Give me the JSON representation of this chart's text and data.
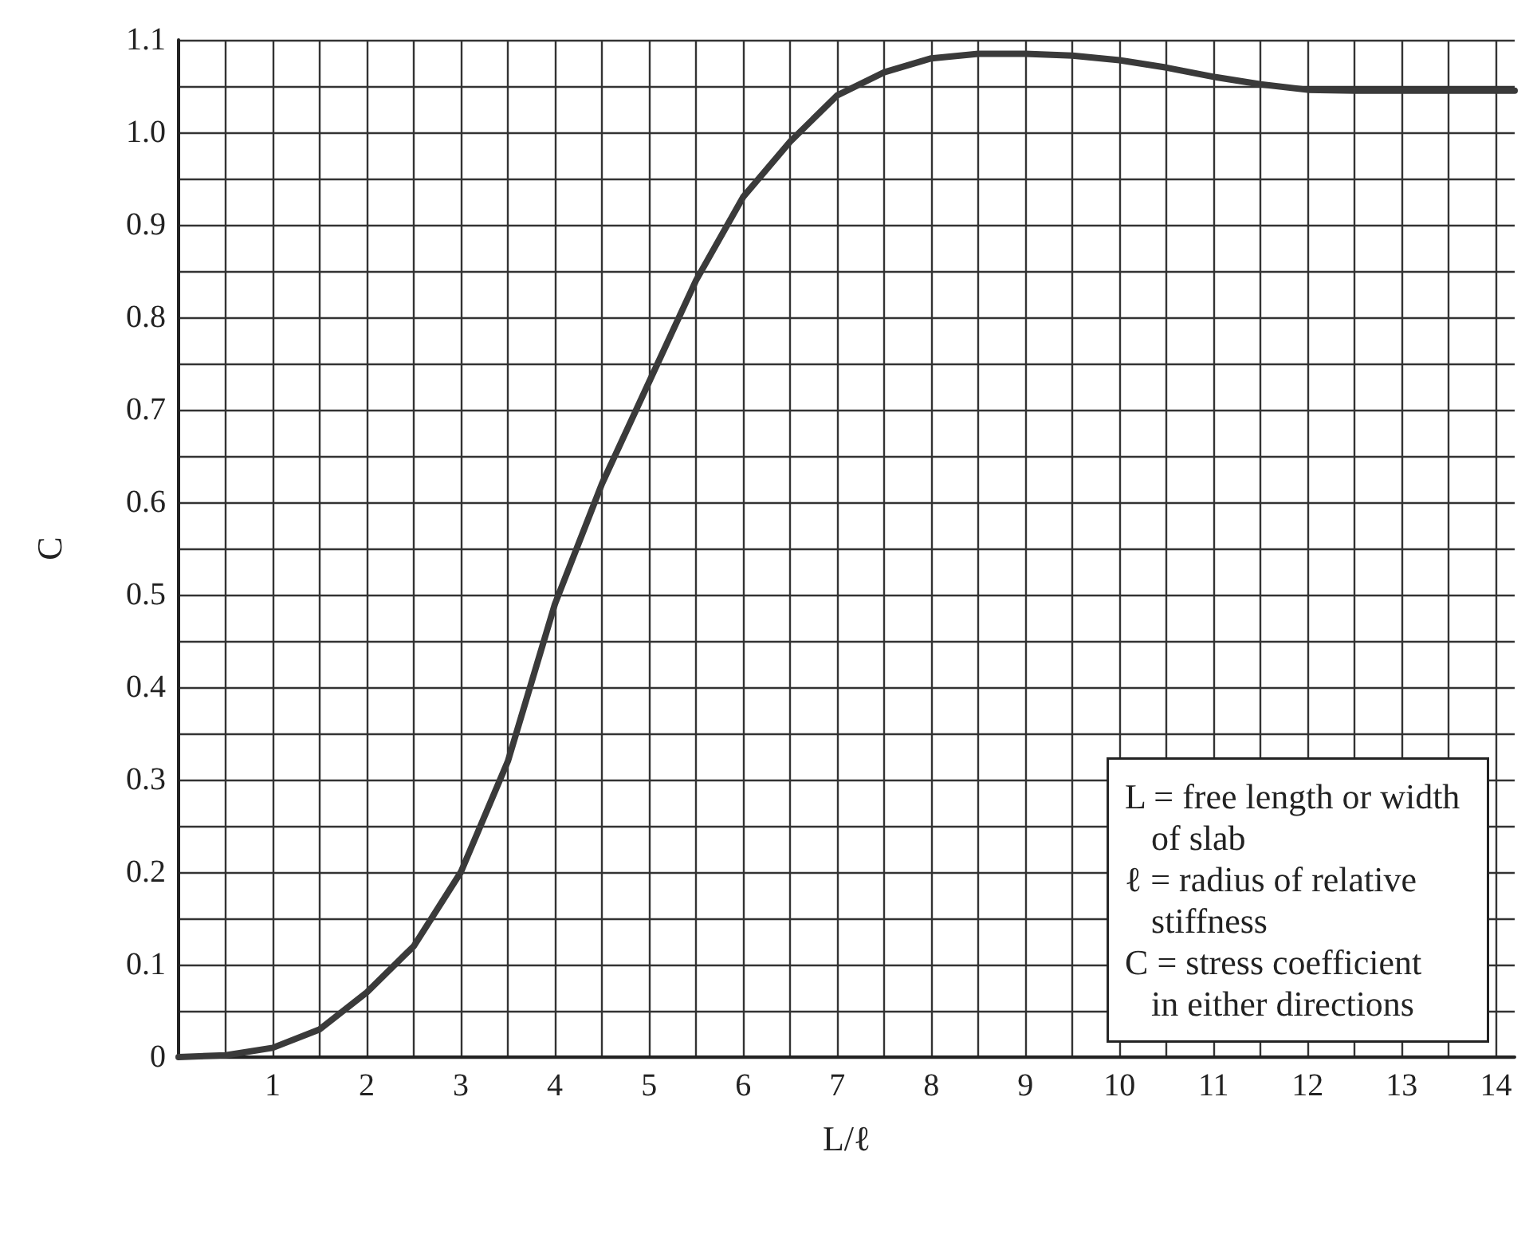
{
  "chart_data": {
    "type": "line",
    "xlabel": "L/ℓ",
    "ylabel": "C",
    "x": [
      0,
      0.5,
      1,
      1.5,
      2,
      2.5,
      3,
      3.5,
      4,
      4.5,
      5,
      5.5,
      6,
      6.5,
      7,
      7.5,
      8,
      8.5,
      9,
      9.5,
      10,
      10.5,
      11,
      11.5,
      12,
      12.5,
      13,
      13.5,
      14,
      14.2
    ],
    "series": [
      {
        "color": "#3a3a3a",
        "values": [
          0,
          0.002,
          0.01,
          0.03,
          0.07,
          0.12,
          0.2,
          0.32,
          0.49,
          0.62,
          0.73,
          0.84,
          0.93,
          0.99,
          1.04,
          1.065,
          1.08,
          1.085,
          1.085,
          1.083,
          1.078,
          1.07,
          1.06,
          1.052,
          1.046,
          1.045,
          1.045,
          1.045,
          1.045,
          1.045
        ]
      }
    ],
    "xlim": [
      0,
      14.2
    ],
    "xticks": [
      {
        "value": 0.5,
        "label": null
      },
      1,
      {
        "value": 1.5,
        "label": null
      },
      2,
      {
        "value": 2.5,
        "label": null
      },
      3,
      {
        "value": 3.5,
        "label": null
      },
      4,
      {
        "value": 4.5,
        "label": null
      },
      5,
      {
        "value": 5.5,
        "label": null
      },
      6,
      {
        "value": 6.5,
        "label": null
      },
      7,
      {
        "value": 7.5,
        "label": null
      },
      8,
      {
        "value": 8.5,
        "label": null
      },
      9,
      {
        "value": 9.5,
        "label": null
      },
      10,
      {
        "value": 10.5,
        "label": null
      },
      11,
      {
        "value": 11.5,
        "label": null
      },
      12,
      {
        "value": 12.5,
        "label": null
      },
      13,
      {
        "value": 13.5,
        "label": null
      },
      14
    ],
    "ylim": [
      0,
      1.1
    ],
    "yticks": [
      0,
      {
        "value": 0.05,
        "label": null
      },
      0.1,
      {
        "value": 0.15,
        "label": null
      },
      0.2,
      {
        "value": 0.25,
        "label": null
      },
      0.3,
      {
        "value": 0.35,
        "label": null
      },
      0.4,
      {
        "value": 0.45,
        "label": null
      },
      0.5,
      {
        "value": 0.55,
        "label": null
      },
      0.6,
      {
        "value": 0.65,
        "label": null
      },
      0.7,
      {
        "value": 0.75,
        "label": null
      },
      0.8,
      {
        "value": 0.85,
        "label": null
      },
      0.9,
      {
        "value": 0.95,
        "label": null
      },
      {
        "value": 1,
        "label": "1.0"
      },
      {
        "value": 1.05,
        "label": null
      },
      {
        "value": 1.1,
        "label": "1.1"
      }
    ],
    "grid": true,
    "marker": "none",
    "line_style": "solid",
    "annotations": [
      "L = free length or width\n   of slab\nℓ = radius of relative\n   stiffness\nC = stress coefficient\n   in either directions"
    ]
  }
}
